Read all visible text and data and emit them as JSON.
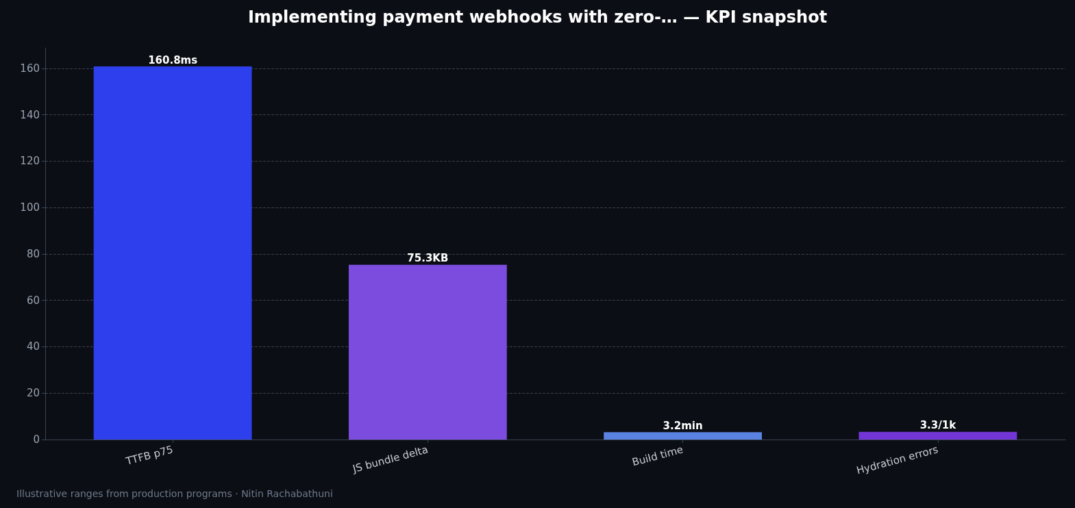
{
  "chart_data": {
    "type": "bar",
    "title": "Implementing payment webhooks with zero-… — KPI snapshot",
    "categories": [
      "TTFB p75",
      "JS bundle delta",
      "Build time",
      "Hydration errors"
    ],
    "values": [
      160.8,
      75.3,
      3.2,
      3.3
    ],
    "colors": [
      "#2e40ed",
      "#7b4cdd",
      "#5a82e0",
      "#7435d6"
    ],
    "value_labels": [
      "160.8ms",
      "75.3KB",
      "3.2min",
      "3.3/1k"
    ],
    "ylim": [
      0,
      168.8
    ],
    "yticks": [
      0,
      20,
      40,
      60,
      80,
      100,
      120,
      140,
      160
    ],
    "grid": "y",
    "annotations": [
      "Illustrative ranges from production programs · Nitin Rachabathuni"
    ]
  }
}
